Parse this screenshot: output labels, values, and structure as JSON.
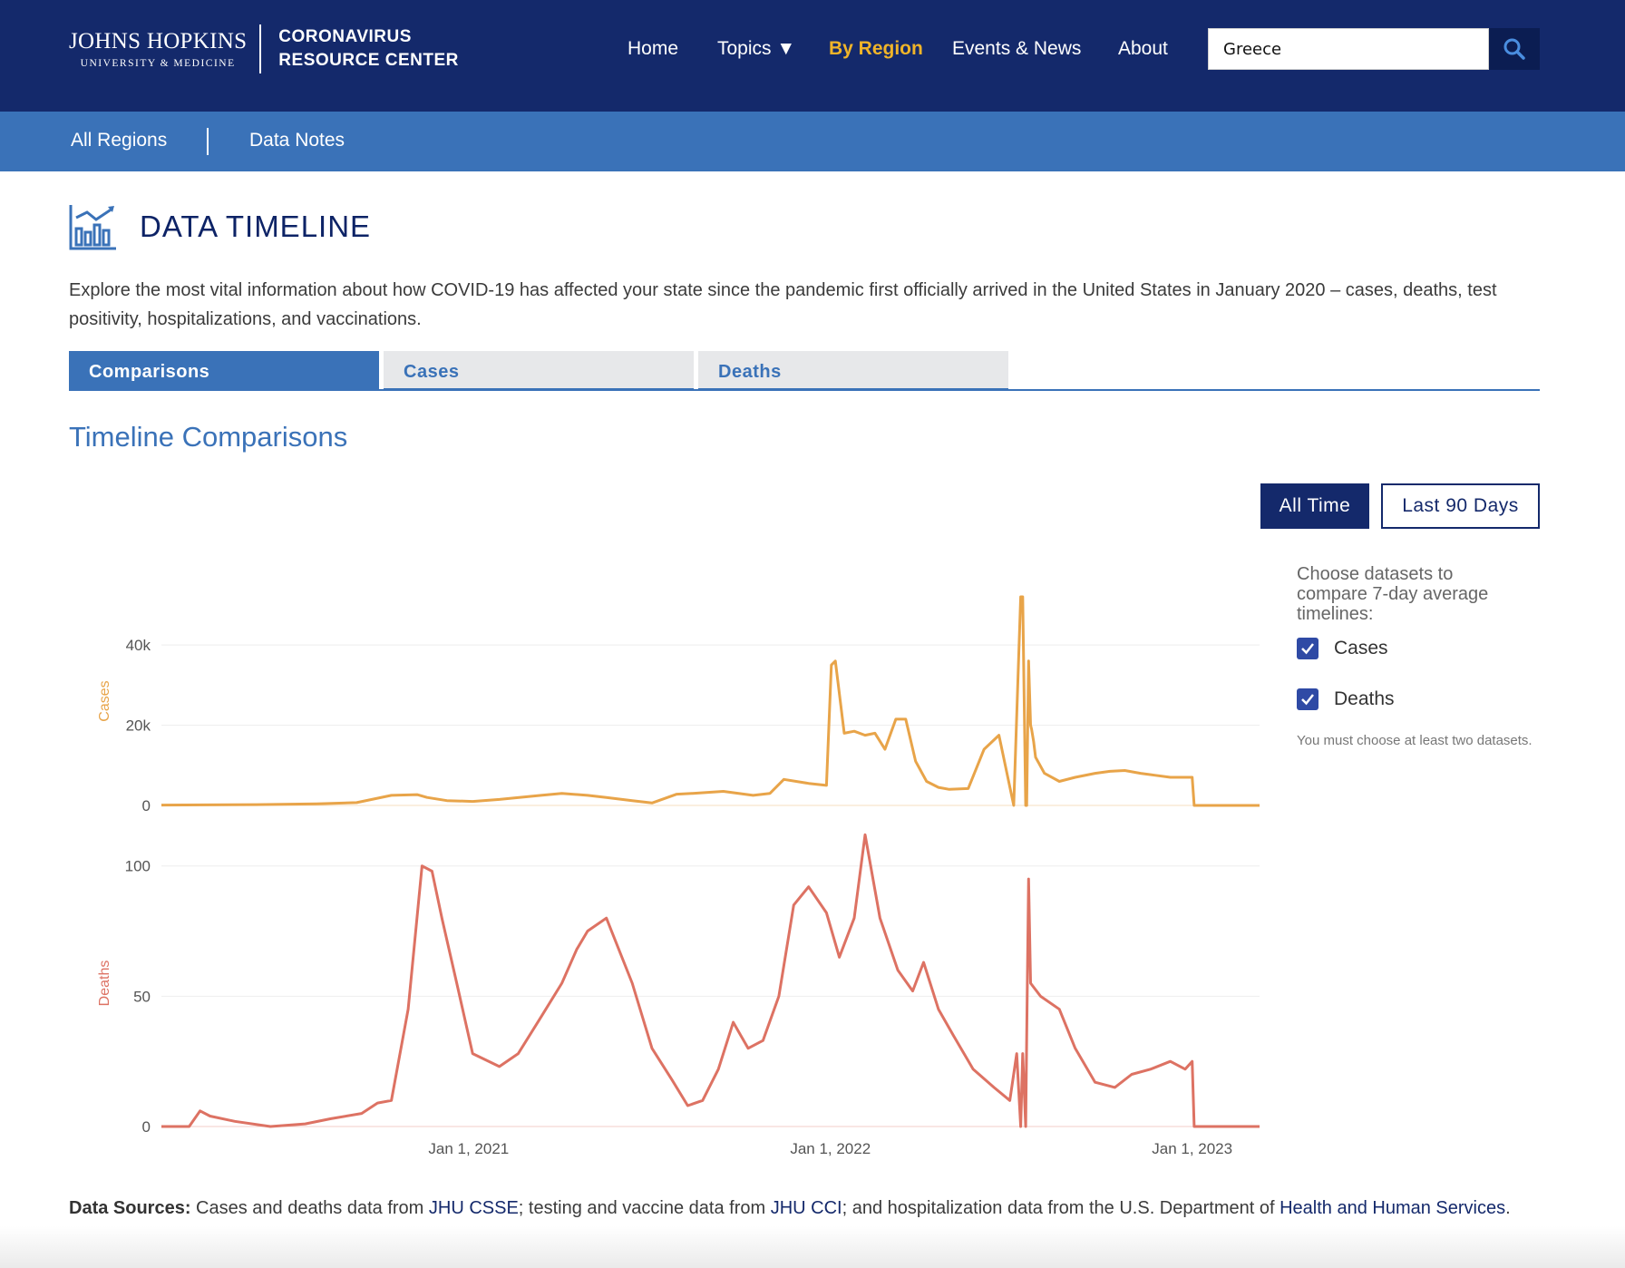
{
  "header": {
    "logo_main": "JOHNS HOPKINS",
    "logo_sub": "UNIVERSITY & MEDICINE",
    "center_line1": "CORONAVIRUS",
    "center_line2": "RESOURCE CENTER",
    "nav": {
      "home": "Home",
      "topics": "Topics ▼",
      "by_region": "By Region",
      "events": "Events & News",
      "about": "About"
    },
    "search_value": "Greece",
    "accent_color": "#f0b429",
    "background_color": "#14296b"
  },
  "subnav": {
    "all_regions": "All Regions",
    "data_notes": "Data Notes",
    "background_color": "#3a72b8"
  },
  "page": {
    "title": "DATA TIMELINE",
    "intro": "Explore the most vital information about how COVID-19 has affected your state since the pandemic first officially arrived in the United States in January 2020 – cases, deaths, test positivity, hospitalizations, and vaccinations.",
    "tabs": [
      "Comparisons",
      "Cases",
      "Deaths"
    ],
    "active_tab": "Comparisons",
    "section_title": "Timeline Comparisons"
  },
  "controls": {
    "range_all": "All Time",
    "range_90": "Last 90 Days",
    "active_range": "All Time",
    "datasets_heading": "Choose datasets to compare 7-day average timelines:",
    "datasets": [
      {
        "label": "Cases",
        "checked": true
      },
      {
        "label": "Deaths",
        "checked": true
      }
    ],
    "note": "You must choose at least two datasets."
  },
  "footer": {
    "label": "Data Sources:",
    "text1": " Cases and deaths data from ",
    "link1": "JHU CSSE",
    "text2": "; testing and vaccine data from ",
    "link2": "JHU CCI",
    "text3": "; and hospitalization data from the U.S. Department of ",
    "link3": "Health and Human Services",
    "text4": "."
  },
  "chart_data": [
    {
      "type": "line",
      "ylabel": "Cases",
      "color": "#e8a449",
      "y_ticks": [
        0,
        20000,
        40000
      ],
      "y_tick_labels": [
        "0",
        "20k",
        "40k"
      ],
      "ylim": [
        0,
        52000
      ],
      "x_ticks": [
        "2021-01-01",
        "2022-01-01",
        "2023-01-01"
      ],
      "x_tick_labels": [
        "Jan 1, 2021",
        "Jan 1, 2022",
        "Jan 1, 2023"
      ],
      "xlim": [
        "2020-02-26",
        "2023-03-10"
      ],
      "x": [
        "2020-02-26",
        "2020-06-01",
        "2020-08-01",
        "2020-09-10",
        "2020-10-15",
        "2020-11-10",
        "2020-11-20",
        "2020-12-10",
        "2021-01-05",
        "2021-02-01",
        "2021-03-15",
        "2021-04-05",
        "2021-05-01",
        "2021-05-20",
        "2021-06-15",
        "2021-07-05",
        "2021-07-30",
        "2021-08-15",
        "2021-09-15",
        "2021-10-15",
        "2021-11-01",
        "2021-11-15",
        "2021-12-10",
        "2021-12-28",
        "2022-01-02",
        "2022-01-06",
        "2022-01-15",
        "2022-01-25",
        "2022-02-05",
        "2022-02-15",
        "2022-02-25",
        "2022-03-08",
        "2022-03-18",
        "2022-03-28",
        "2022-04-08",
        "2022-04-20",
        "2022-05-01",
        "2022-05-20",
        "2022-06-05",
        "2022-06-20",
        "2022-07-05",
        "2022-07-12",
        "2022-07-14",
        "2022-07-17",
        "2022-07-18",
        "2022-07-20",
        "2022-07-22",
        "2022-07-23",
        "2022-07-25",
        "2022-07-27",
        "2022-08-05",
        "2022-08-20",
        "2022-09-05",
        "2022-09-25",
        "2022-10-10",
        "2022-10-25",
        "2022-11-10",
        "2022-11-25",
        "2022-12-10",
        "2022-12-25",
        "2023-01-01",
        "2023-01-03",
        "2023-03-10"
      ],
      "values": [
        100,
        200,
        400,
        700,
        2500,
        2700,
        2000,
        1200,
        1000,
        1500,
        2500,
        3000,
        2500,
        2000,
        1200,
        600,
        2800,
        3000,
        3500,
        2500,
        3000,
        6500,
        5500,
        5000,
        35000,
        36000,
        18000,
        18500,
        17500,
        18000,
        14000,
        21500,
        21500,
        11000,
        6000,
        4500,
        4000,
        4200,
        14000,
        17500,
        0,
        52000,
        52000,
        0,
        0,
        36000,
        20000,
        19000,
        16000,
        12000,
        8000,
        6000,
        7000,
        8000,
        8500,
        8700,
        8000,
        7500,
        7000,
        7000,
        7000,
        0,
        0
      ]
    },
    {
      "type": "line",
      "ylabel": "Deaths",
      "color": "#dd7263",
      "y_ticks": [
        0,
        50,
        100
      ],
      "y_tick_labels": [
        "0",
        "50",
        "100"
      ],
      "ylim": [
        0,
        110
      ],
      "x_ticks": [
        "2021-01-01",
        "2022-01-01",
        "2023-01-01"
      ],
      "x_tick_labels": [
        "Jan 1, 2021",
        "Jan 1, 2022",
        "Jan 1, 2023"
      ],
      "xlim": [
        "2020-02-26",
        "2023-03-10"
      ],
      "x": [
        "2020-02-26",
        "2020-03-25",
        "2020-04-05",
        "2020-04-15",
        "2020-05-10",
        "2020-06-15",
        "2020-07-20",
        "2020-08-15",
        "2020-09-15",
        "2020-10-01",
        "2020-10-15",
        "2020-11-01",
        "2020-11-15",
        "2020-11-25",
        "2020-12-05",
        "2020-12-20",
        "2021-01-05",
        "2021-02-01",
        "2021-02-20",
        "2021-03-15",
        "2021-04-05",
        "2021-04-20",
        "2021-05-01",
        "2021-05-20",
        "2021-06-15",
        "2021-07-05",
        "2021-07-25",
        "2021-08-10",
        "2021-08-25",
        "2021-09-10",
        "2021-09-25",
        "2021-10-10",
        "2021-10-25",
        "2021-11-10",
        "2021-11-25",
        "2021-12-10",
        "2021-12-28",
        "2022-01-10",
        "2022-01-25",
        "2022-02-05",
        "2022-02-20",
        "2022-03-10",
        "2022-03-25",
        "2022-04-05",
        "2022-04-20",
        "2022-05-05",
        "2022-05-25",
        "2022-06-15",
        "2022-07-01",
        "2022-07-08",
        "2022-07-12",
        "2022-07-14",
        "2022-07-17",
        "2022-07-18",
        "2022-07-20",
        "2022-07-22",
        "2022-08-01",
        "2022-08-20",
        "2022-09-05",
        "2022-09-25",
        "2022-10-15",
        "2022-11-01",
        "2022-11-20",
        "2022-12-10",
        "2022-12-25",
        "2023-01-01",
        "2023-01-03",
        "2023-03-10"
      ],
      "values": [
        0,
        0,
        6,
        4,
        2,
        0,
        1,
        3,
        5,
        9,
        10,
        45,
        100,
        98,
        80,
        55,
        28,
        23,
        28,
        42,
        55,
        68,
        75,
        80,
        55,
        30,
        18,
        8,
        10,
        22,
        40,
        30,
        33,
        50,
        85,
        92,
        82,
        65,
        80,
        112,
        80,
        60,
        52,
        63,
        45,
        35,
        22,
        15,
        10,
        28,
        0,
        28,
        0,
        34,
        95,
        55,
        50,
        45,
        30,
        17,
        15,
        20,
        22,
        25,
        22,
        25,
        0,
        0
      ]
    }
  ]
}
